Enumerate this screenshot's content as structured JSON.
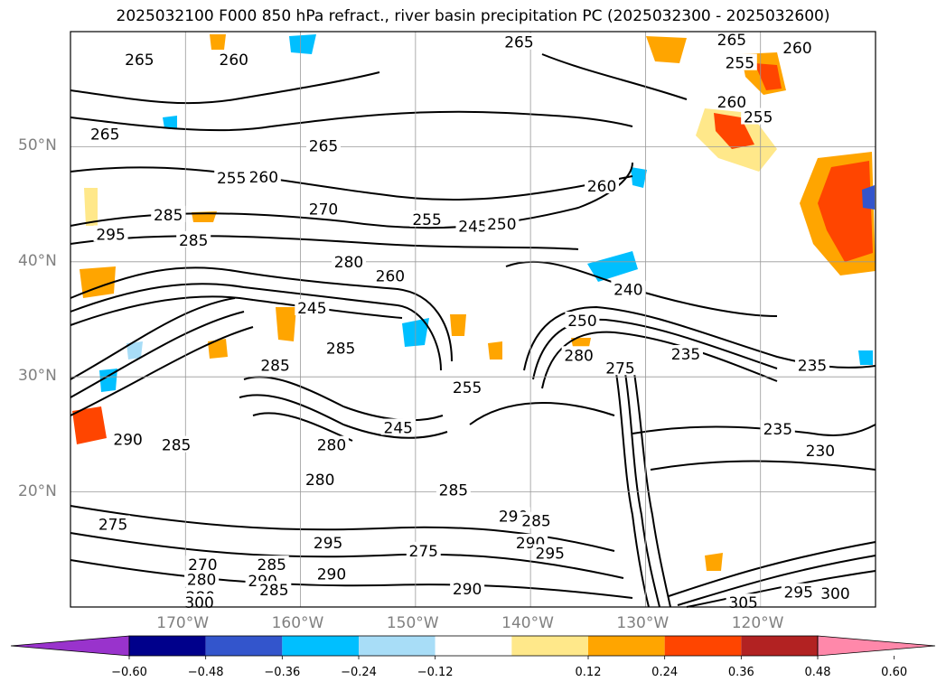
{
  "title": "2025032100 F000 850 hPa refract., river basin precipitation PC (2025032300 - 2025032600)",
  "map": {
    "extent": {
      "lon_min": -180,
      "lon_max": -110,
      "lat_min": 10,
      "lat_max": 60
    },
    "lat_labels": [
      {
        "lat": 50,
        "label": "50°N"
      },
      {
        "lat": 40,
        "label": "40°N"
      },
      {
        "lat": 30,
        "label": "30°N"
      },
      {
        "lat": 20,
        "label": "20°N"
      }
    ],
    "lon_labels": [
      {
        "lon": -170,
        "label": "170°W"
      },
      {
        "lon": -160,
        "label": "160°W"
      },
      {
        "lon": -150,
        "label": "150°W"
      },
      {
        "lon": -140,
        "label": "140°W"
      },
      {
        "lon": -130,
        "label": "130°W"
      },
      {
        "lon": -120,
        "label": "120°W"
      }
    ],
    "contour_labels": [
      {
        "text": "265",
        "lon": -174,
        "lat": 57.5
      },
      {
        "text": "260",
        "lon": -165.8,
        "lat": 57.5
      },
      {
        "text": "265",
        "lon": -141,
        "lat": 59
      },
      {
        "text": "265",
        "lon": -122.5,
        "lat": 59.2
      },
      {
        "text": "260",
        "lon": -116.8,
        "lat": 58.5
      },
      {
        "text": "255",
        "lon": -121.8,
        "lat": 57.2
      },
      {
        "text": "260",
        "lon": -122.5,
        "lat": 53.8
      },
      {
        "text": "255",
        "lon": -120.2,
        "lat": 52.5
      },
      {
        "text": "265",
        "lon": -177,
        "lat": 51
      },
      {
        "text": "265",
        "lon": -158,
        "lat": 50
      },
      {
        "text": "255",
        "lon": -166,
        "lat": 47.2
      },
      {
        "text": "260",
        "lon": -163.2,
        "lat": 47.3
      },
      {
        "text": "270",
        "lon": -158,
        "lat": 44.5
      },
      {
        "text": "255",
        "lon": -149,
        "lat": 43.6
      },
      {
        "text": "245",
        "lon": -145,
        "lat": 43
      },
      {
        "text": "250",
        "lon": -142.5,
        "lat": 43.2
      },
      {
        "text": "260",
        "lon": -133.8,
        "lat": 46.5
      },
      {
        "text": "285",
        "lon": -171.5,
        "lat": 44
      },
      {
        "text": "285",
        "lon": -169.3,
        "lat": 41.8
      },
      {
        "text": "295",
        "lon": -176.5,
        "lat": 42.3
      },
      {
        "text": "280",
        "lon": -155.8,
        "lat": 39.9
      },
      {
        "text": "260",
        "lon": -152.2,
        "lat": 38.7
      },
      {
        "text": "240",
        "lon": -131.5,
        "lat": 37.5
      },
      {
        "text": "245",
        "lon": -159,
        "lat": 35.9
      },
      {
        "text": "250",
        "lon": -135.5,
        "lat": 34.8
      },
      {
        "text": "285",
        "lon": -156.5,
        "lat": 32.4
      },
      {
        "text": "280",
        "lon": -135.8,
        "lat": 31.8
      },
      {
        "text": "235",
        "lon": -126.5,
        "lat": 31.9
      },
      {
        "text": "235",
        "lon": -115.5,
        "lat": 30.9
      },
      {
        "text": "275",
        "lon": -132.2,
        "lat": 30.7
      },
      {
        "text": "285",
        "lon": -162.2,
        "lat": 30.9
      },
      {
        "text": "255",
        "lon": -145.5,
        "lat": 29
      },
      {
        "text": "245",
        "lon": -151.5,
        "lat": 25.5
      },
      {
        "text": "235",
        "lon": -118.5,
        "lat": 25.4
      },
      {
        "text": "290",
        "lon": -175,
        "lat": 24.5
      },
      {
        "text": "285",
        "lon": -170.8,
        "lat": 24
      },
      {
        "text": "280",
        "lon": -157.3,
        "lat": 24
      },
      {
        "text": "230",
        "lon": -114.8,
        "lat": 23.5
      },
      {
        "text": "280",
        "lon": -158.3,
        "lat": 21
      },
      {
        "text": "285",
        "lon": -146.7,
        "lat": 20.1
      },
      {
        "text": "290",
        "lon": -141.5,
        "lat": 17.8
      },
      {
        "text": "285",
        "lon": -139.5,
        "lat": 17.4
      },
      {
        "text": "275",
        "lon": -176.3,
        "lat": 17.1
      },
      {
        "text": "295",
        "lon": -157.6,
        "lat": 15.5
      },
      {
        "text": "290",
        "lon": -140,
        "lat": 15.5
      },
      {
        "text": "295",
        "lon": -138.3,
        "lat": 14.6
      },
      {
        "text": "275",
        "lon": -149.3,
        "lat": 14.8
      },
      {
        "text": "270",
        "lon": -168.5,
        "lat": 13.6
      },
      {
        "text": "285",
        "lon": -162.5,
        "lat": 13.6
      },
      {
        "text": "290",
        "lon": -157.3,
        "lat": 12.8
      },
      {
        "text": "290",
        "lon": -163.3,
        "lat": 12.2
      },
      {
        "text": "280",
        "lon": -168.6,
        "lat": 12.3
      },
      {
        "text": "285",
        "lon": -162.3,
        "lat": 11.4
      },
      {
        "text": "290",
        "lon": -145.5,
        "lat": 11.5
      },
      {
        "text": "295",
        "lon": -116.7,
        "lat": 11.2
      },
      {
        "text": "300",
        "lon": -113.5,
        "lat": 11.1
      },
      {
        "text": "280",
        "lon": -168.7,
        "lat": 10.8
      },
      {
        "text": "300",
        "lon": -168.8,
        "lat": 10.3
      },
      {
        "text": "305",
        "lon": -121.5,
        "lat": 10.3
      }
    ]
  },
  "colorbar": {
    "ticks": [
      "−0.60",
      "−0.48",
      "−0.36",
      "−0.24",
      "−0.12",
      "0.12",
      "0.24",
      "0.36",
      "0.48",
      "0.60"
    ],
    "colors": [
      "#9933cc",
      "#00008b",
      "#3355cc",
      "#00bfff",
      "#a8ddf7",
      "#ffffff",
      "#ffe88a",
      "#ffa500",
      "#ff4500",
      "#b22222",
      "#ff88aa"
    ]
  },
  "colors": {
    "contour": "#000000",
    "grid": "#999999",
    "axis_label": "#808080"
  }
}
